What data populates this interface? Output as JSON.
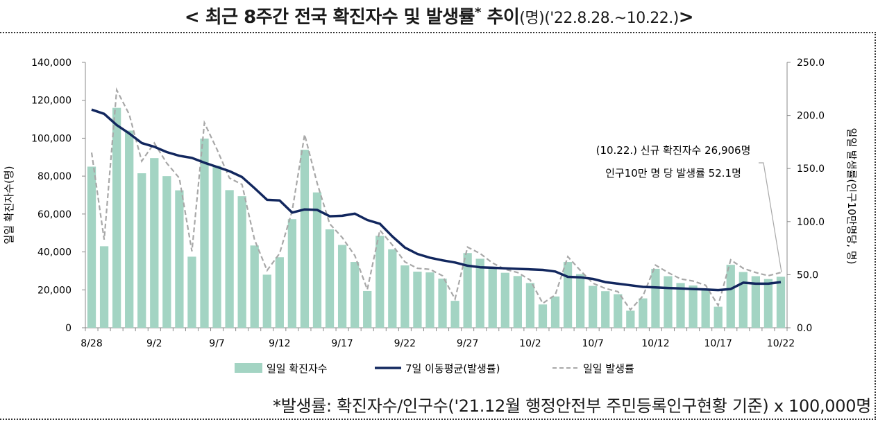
{
  "title": {
    "main": "< 최근 8주간 전국 확진자수 및 발생률",
    "star": "*",
    "trend": " 추이",
    "unit_period": "(명)('22.8.28.~10.22.)",
    "close": ">"
  },
  "footnote": "*발생률: 확진자수/인구수('21.12월 행정안전부 주민등록인구현황 기준) x 100,000명",
  "colors": {
    "bar": "#a3d4c3",
    "avg_line": "#12275e",
    "rate_line": "#a8a8a8"
  },
  "chart_data": {
    "type": "bar",
    "title": "",
    "ylabel": "일일 확진자수(명)",
    "y2label": "일일 발생률(인구10만명당, 명)",
    "ylim": [
      0,
      140000
    ],
    "y2lim": [
      0,
      250
    ],
    "yticks": [
      "0",
      "20,000",
      "40,000",
      "60,000",
      "80,000",
      "100,000",
      "120,000",
      "140,000"
    ],
    "y2ticks": [
      "0.0",
      "50.0",
      "100.0",
      "150.0",
      "200.0",
      "250.0"
    ],
    "xtick_labels": [
      "8/28",
      "9/2",
      "9/7",
      "9/12",
      "9/17",
      "9/22",
      "9/27",
      "10/2",
      "10/7",
      "10/12",
      "10/17",
      "10/22"
    ],
    "categories": [
      "8/28",
      "8/29",
      "8/30",
      "8/31",
      "9/1",
      "9/2",
      "9/3",
      "9/4",
      "9/5",
      "9/6",
      "9/7",
      "9/8",
      "9/9",
      "9/10",
      "9/11",
      "9/12",
      "9/13",
      "9/14",
      "9/15",
      "9/16",
      "9/17",
      "9/18",
      "9/19",
      "9/20",
      "9/21",
      "9/22",
      "9/23",
      "9/24",
      "9/25",
      "9/26",
      "9/27",
      "9/28",
      "9/29",
      "9/30",
      "10/1",
      "10/2",
      "10/3",
      "10/4",
      "10/5",
      "10/6",
      "10/7",
      "10/8",
      "10/9",
      "10/10",
      "10/11",
      "10/12",
      "10/13",
      "10/14",
      "10/15",
      "10/16",
      "10/17",
      "10/18",
      "10/19",
      "10/20",
      "10/21",
      "10/22"
    ],
    "series": [
      {
        "name": "일일 확진자수",
        "type": "bar",
        "axis": "left",
        "values": [
          85000,
          43000,
          116000,
          104000,
          81500,
          89500,
          80000,
          72500,
          37500,
          99800,
          85500,
          72600,
          69400,
          43400,
          28000,
          37200,
          57300,
          93900,
          71400,
          51900,
          43700,
          34700,
          19400,
          48500,
          41400,
          32900,
          29600,
          29200,
          25900,
          14200,
          39400,
          36400,
          32100,
          29000,
          27300,
          23600,
          12300,
          16500,
          34700,
          28300,
          22100,
          19300,
          17700,
          9000,
          15500,
          31100,
          27200,
          23600,
          22300,
          20700,
          11100,
          33200,
          29400,
          27200,
          25700,
          26906
        ]
      },
      {
        "name": "7일 이동평균(발생률)",
        "type": "line",
        "axis": "right",
        "values": [
          205.5,
          201.5,
          191,
          183,
          174,
          170.5,
          165.5,
          162,
          160,
          155.5,
          151.5,
          147.5,
          142,
          131.5,
          120.5,
          120,
          108.5,
          111.5,
          111,
          105,
          105.5,
          107.5,
          101.5,
          98,
          86,
          75.5,
          69.5,
          66,
          63.5,
          61.5,
          58.5,
          57,
          56.5,
          56,
          55.5,
          55,
          54.5,
          53,
          48,
          47.5,
          46,
          43,
          41.5,
          40,
          38.5,
          38,
          37.5,
          37,
          36.5,
          36,
          35.5,
          36.5,
          42.5,
          41.5,
          41.5,
          43
        ]
      },
      {
        "name": "일일 발생률",
        "type": "line",
        "axis": "right",
        "values": [
          165,
          83,
          224,
          201,
          157,
          174,
          155,
          141,
          72,
          193,
          168,
          141,
          135,
          83,
          54,
          70,
          110,
          182,
          136,
          98,
          85,
          68,
          36,
          92,
          78,
          62,
          56,
          55,
          49,
          27,
          76,
          70,
          61,
          55,
          52,
          45,
          23,
          31,
          67,
          54,
          42,
          37,
          34,
          17,
          30,
          59,
          52,
          46,
          44,
          40,
          21,
          64,
          56,
          52,
          49,
          52.1
        ]
      }
    ],
    "legend_position": "bottom",
    "annotation": {
      "line1": "(10.22.) 신규 확진자수 26,906명",
      "line2": "인구10만 명 당 발생률 52.1명"
    }
  }
}
